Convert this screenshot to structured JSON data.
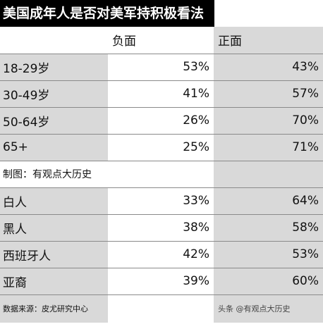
{
  "title": "美国成年人是否对美军持积极看法",
  "headers": {
    "negative": "负面",
    "positive": "正面"
  },
  "age_rows": [
    {
      "label": "18-29岁",
      "negative": "53%",
      "positive": "43%"
    },
    {
      "label": "30-49岁",
      "negative": "41%",
      "positive": "57%"
    },
    {
      "label": "50-64岁",
      "negative": "26%",
      "positive": "70%"
    },
    {
      "label": "65+",
      "negative": "25%",
      "positive": "71%"
    }
  ],
  "credit": "制图：有观点大历史",
  "race_rows": [
    {
      "label": "白人",
      "negative": "33%",
      "positive": "64%"
    },
    {
      "label": "黑人",
      "negative": "38%",
      "positive": "58%"
    },
    {
      "label": "西班牙人",
      "negative": "42%",
      "positive": "53%"
    },
    {
      "label": "亚裔",
      "negative": "39%",
      "positive": "60%"
    }
  ],
  "source": "数据来源：皮尤研究中心",
  "watermark": "头条 @有观点大历史",
  "colors": {
    "shade": "#d9d9d9",
    "title_bg": "#000000"
  }
}
